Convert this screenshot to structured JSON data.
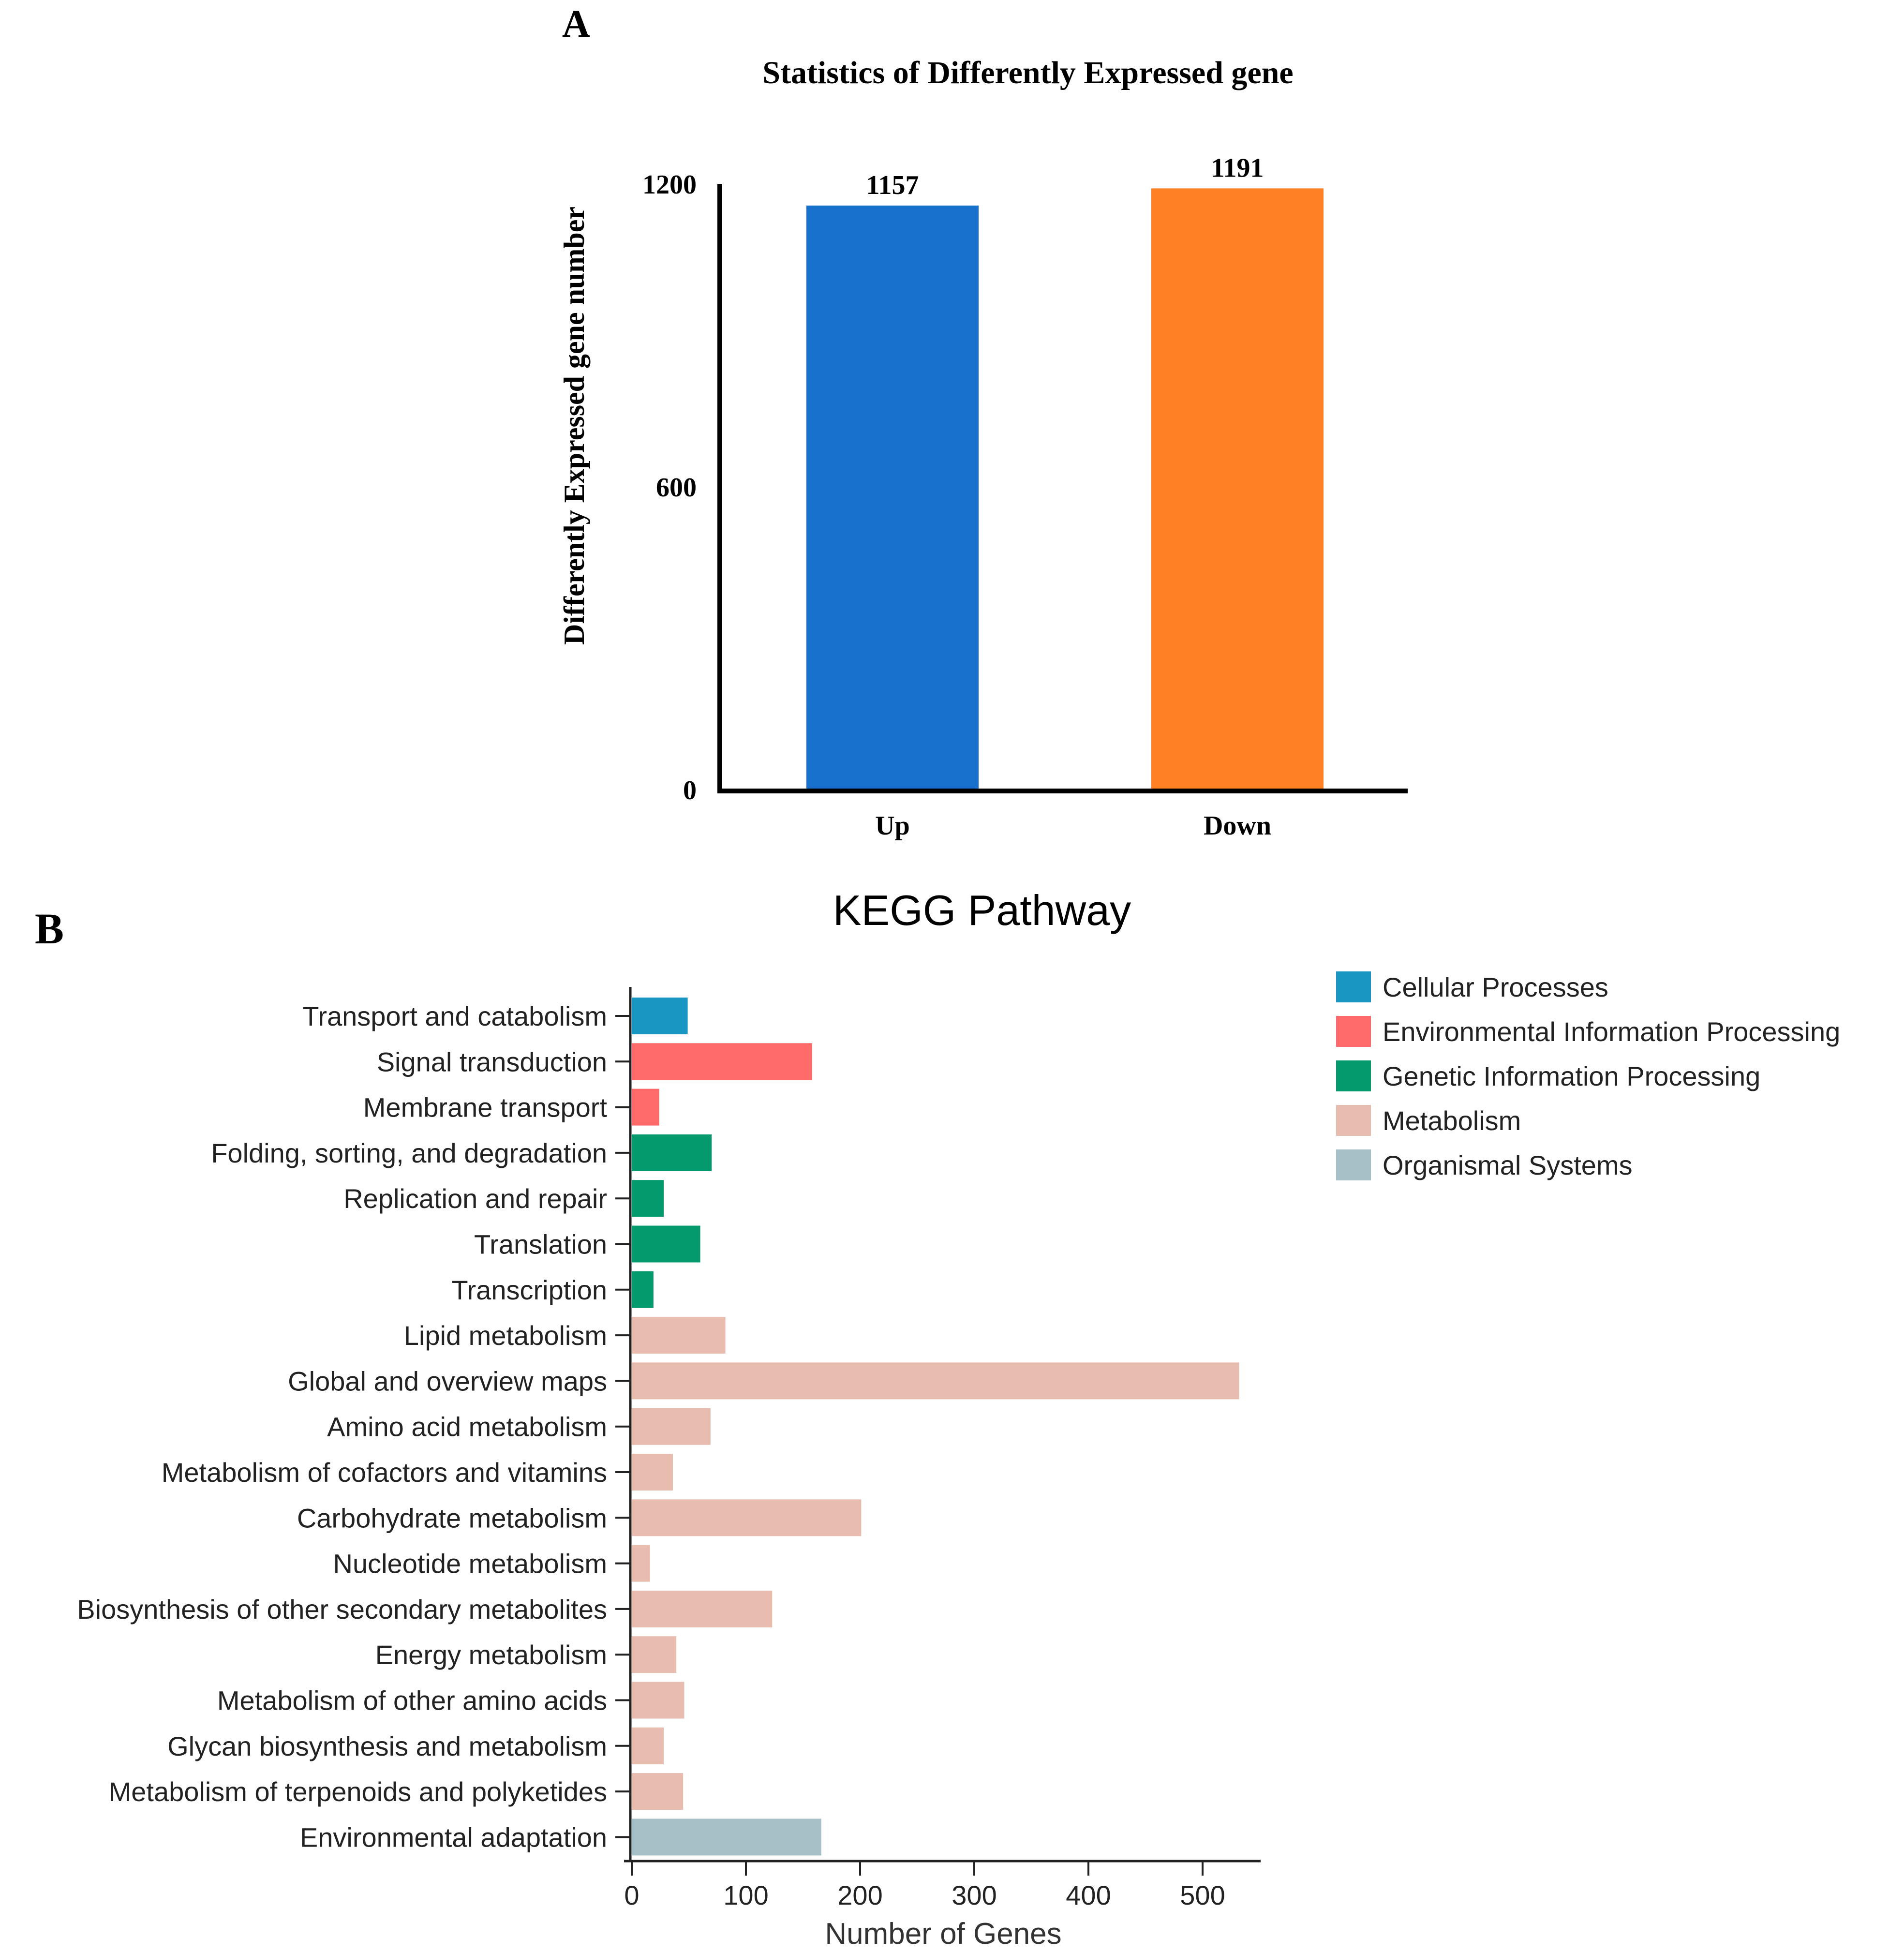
{
  "panel_labels": {
    "a": "A",
    "b": "B"
  },
  "chart_data": [
    {
      "type": "bar",
      "title": "Statistics of Differently Expressed gene",
      "ylabel": "Differently Expressed gene number",
      "xlabel": "",
      "categories": [
        "Up",
        "Down"
      ],
      "values": [
        1157,
        1191
      ],
      "value_labels": [
        "1157",
        "1191"
      ],
      "colors": [
        "#1770CC",
        "#FF8124"
      ],
      "ylim": [
        0,
        1200
      ],
      "yticks": [
        0,
        600,
        1200
      ],
      "ytick_labels": [
        "0",
        "600",
        "1200"
      ],
      "grid": false
    },
    {
      "type": "bar",
      "orientation": "horizontal",
      "title": "KEGG Pathway",
      "xlabel": "Number of Genes",
      "ylabel": "",
      "xlim": [
        0,
        550
      ],
      "xticks": [
        0,
        100,
        200,
        300,
        400,
        500
      ],
      "xtick_labels": [
        "0",
        "100",
        "200",
        "300",
        "400",
        "500"
      ],
      "grid": false,
      "legend_position": "top-right",
      "groups": [
        {
          "name": "Cellular Processes",
          "color": "#1A96C2"
        },
        {
          "name": "Environmental Information Processing",
          "color": "#FE6A6A"
        },
        {
          "name": "Genetic Information Processing",
          "color": "#05996E"
        },
        {
          "name": "Metabolism",
          "color": "#E9BCB0"
        },
        {
          "name": "Organismal Systems",
          "color": "#A5C0C7"
        }
      ],
      "categories": [
        "Transport and catabolism",
        "Signal transduction",
        "Membrane transport",
        "Folding, sorting, and degradation",
        "Replication and repair",
        "Translation",
        "Transcription",
        "Lipid metabolism",
        "Global and overview maps",
        "Amino acid metabolism",
        "Metabolism of cofactors and vitamins",
        "Carbohydrate metabolism",
        "Nucleotide metabolism",
        "Biosynthesis of other secondary metabolites",
        "Energy metabolism",
        "Metabolism of other amino acids",
        "Glycan biosynthesis and metabolism",
        "Metabolism of terpenoids and polyketides",
        "Environmental adaptation"
      ],
      "values": [
        49,
        158,
        24,
        70,
        28,
        60,
        19,
        82,
        532,
        69,
        36,
        201,
        16,
        123,
        39,
        46,
        28,
        45,
        166
      ],
      "group_index": [
        0,
        1,
        1,
        2,
        2,
        2,
        2,
        3,
        3,
        3,
        3,
        3,
        3,
        3,
        3,
        3,
        3,
        3,
        4
      ]
    }
  ]
}
